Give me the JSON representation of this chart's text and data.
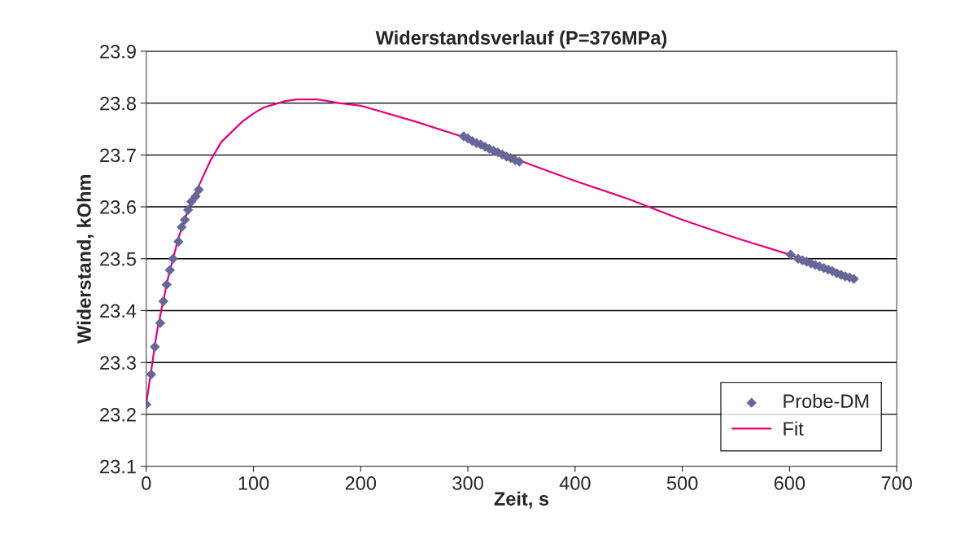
{
  "chart_data": {
    "type": "scatter",
    "title": "Widerstandsverlauf (P=376MPa)",
    "xlabel": "Zeit, s",
    "ylabel": "Widerstand, kOhm",
    "xlim": [
      0,
      700
    ],
    "xticks": [
      0,
      100,
      200,
      300,
      400,
      500,
      600,
      700
    ],
    "ylim": [
      23.1,
      23.9
    ],
    "yticks": [
      23.1,
      23.2,
      23.3,
      23.4,
      23.5,
      23.6,
      23.7,
      23.8,
      23.9
    ],
    "grid": "y",
    "legend": "bottom right",
    "series": [
      {
        "name": "Probe-DM",
        "marker": "diamond",
        "color": "#666699",
        "x": [
          0,
          4.6,
          8,
          13,
          16,
          19,
          22,
          25,
          30,
          33,
          36,
          39,
          42,
          46,
          49,
          296,
          300,
          304,
          308,
          312,
          316,
          320,
          324,
          328,
          332,
          336,
          340,
          344,
          348,
          601,
          608,
          612,
          616,
          620,
          624,
          628,
          632,
          636,
          640,
          644,
          648,
          652,
          656,
          660
        ],
        "values": [
          23.219,
          23.277,
          23.33,
          23.376,
          23.418,
          23.45,
          23.478,
          23.5,
          23.533,
          23.561,
          23.575,
          23.594,
          23.61,
          23.62,
          23.633,
          23.736,
          23.732,
          23.727,
          23.723,
          23.72,
          23.716,
          23.712,
          23.708,
          23.705,
          23.701,
          23.697,
          23.694,
          23.69,
          23.687,
          23.508,
          23.5,
          23.497,
          23.494,
          23.491,
          23.488,
          23.485,
          23.482,
          23.479,
          23.476,
          23.472,
          23.469,
          23.466,
          23.464,
          23.461
        ]
      },
      {
        "name": "Fit",
        "type": "line",
        "marker": "none",
        "color": "#e6007e",
        "x": [
          0,
          10,
          20,
          30,
          40,
          50,
          60,
          70,
          80,
          90,
          100,
          110,
          120,
          130,
          140,
          160,
          180,
          200,
          250,
          300,
          350,
          400,
          450,
          500,
          550,
          600,
          660
        ],
        "values": [
          23.22,
          23.36,
          23.46,
          23.54,
          23.6,
          23.645,
          23.69,
          23.725,
          23.745,
          23.765,
          23.78,
          23.792,
          23.798,
          23.804,
          23.807,
          23.807,
          23.8,
          23.795,
          23.765,
          23.732,
          23.688,
          23.65,
          23.615,
          23.575,
          23.54,
          23.508,
          23.462
        ]
      }
    ]
  }
}
